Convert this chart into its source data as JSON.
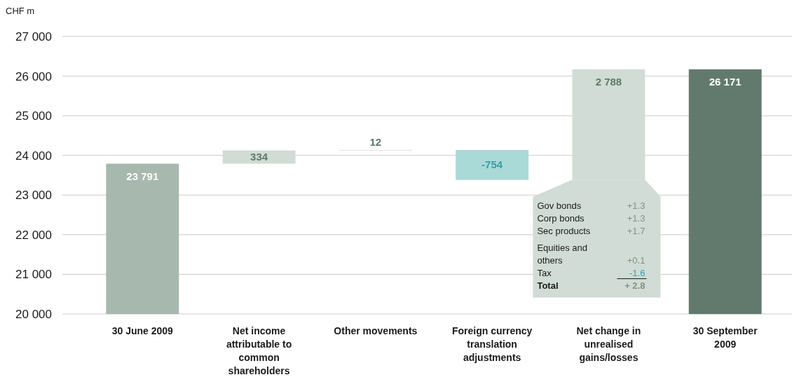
{
  "chart_data": {
    "type": "bar",
    "ylabel": "CHF m",
    "categories": [
      "30 June 2009",
      "Net income attributable to common shareholders",
      "Other movements",
      "Foreign currency translation adjustments",
      "Net change in unrealised gains/losses",
      "30 September 2009"
    ],
    "values": [
      23791,
      334,
      12,
      -754,
      2788,
      26171
    ],
    "base": [
      null,
      23791,
      24125,
      24137,
      23383,
      null
    ],
    "colors": [
      "#a7b8af",
      "#d0dcd5",
      "#d0dcd5",
      "#a9dad8",
      "#d0dcd5",
      "#627a6e"
    ],
    "value_labels": [
      "23 791",
      "334",
      "12",
      "-754",
      "2 788",
      "26 171"
    ],
    "ylim": [
      20000,
      27000
    ],
    "yticks": [
      {
        "value": 20000,
        "label": "20 000"
      },
      {
        "value": 21000,
        "label": "21 000"
      },
      {
        "value": 22000,
        "label": "22 000"
      },
      {
        "value": 23000,
        "label": "23 000"
      },
      {
        "value": 24000,
        "label": "24 000"
      },
      {
        "value": 25000,
        "label": "25 000"
      },
      {
        "value": 26000,
        "label": "26 000"
      },
      {
        "value": 27000,
        "label": "27 000"
      }
    ],
    "grid": "y",
    "annotations": [
      "Gov bonds",
      "+1.3",
      "Corp bonds",
      "+1.3",
      "Sec products",
      "+1.7",
      "Equities and others",
      "+0.1",
      "Tax",
      "-1.6",
      "Total",
      "+ 2.8"
    ]
  }
}
